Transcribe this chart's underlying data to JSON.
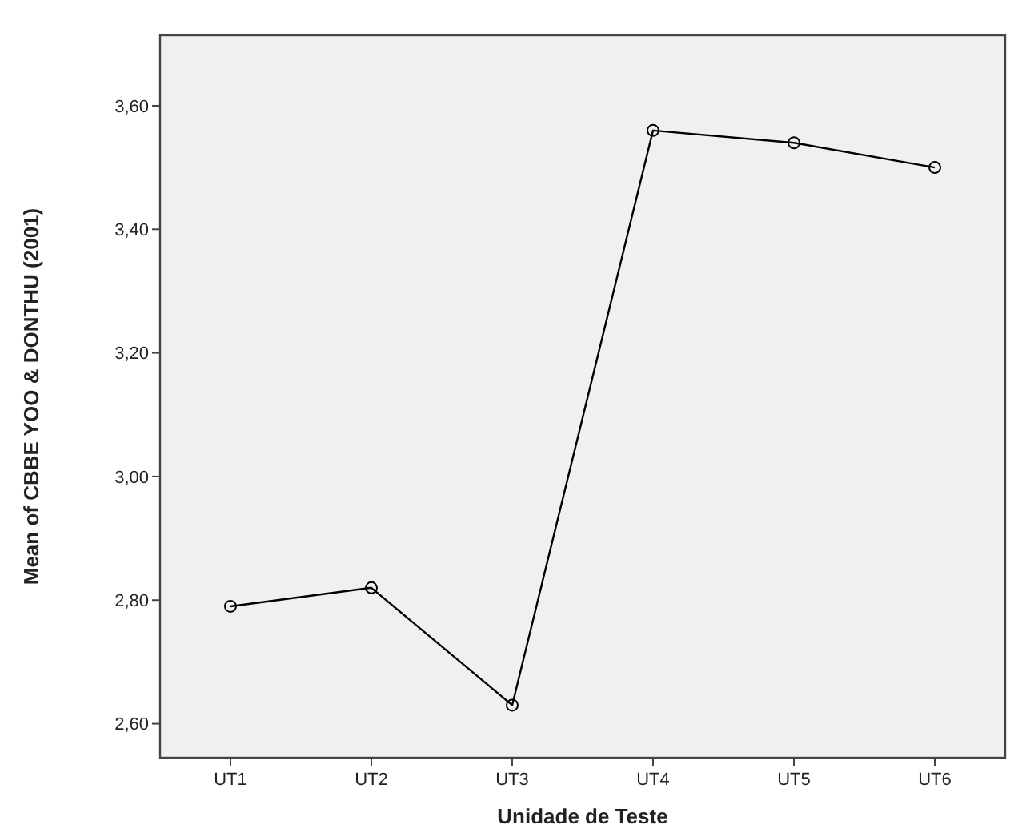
{
  "chart_data": {
    "type": "line",
    "xlabel": "Unidade de Teste",
    "ylabel": "Mean of CBBE YOO & DONTHU (2001)",
    "categories": [
      "UT1",
      "UT2",
      "UT3",
      "UT4",
      "UT5",
      "UT6"
    ],
    "series": [
      {
        "color": "#000000",
        "values": [
          2.79,
          2.82,
          2.63,
          3.56,
          3.54,
          3.5
        ]
      }
    ],
    "ylim": [
      2.545,
      3.714
    ],
    "yticks": [
      {
        "value": 2.6,
        "label": "2,60"
      },
      {
        "value": 2.8,
        "label": "2,80"
      },
      {
        "value": 3.0,
        "label": "3,00"
      },
      {
        "value": 3.2,
        "label": "3,20"
      },
      {
        "value": 3.4,
        "label": "3,40"
      },
      {
        "value": 3.6,
        "label": "3,60"
      }
    ],
    "grid": false,
    "marker": "circle",
    "line_style": "solid"
  }
}
